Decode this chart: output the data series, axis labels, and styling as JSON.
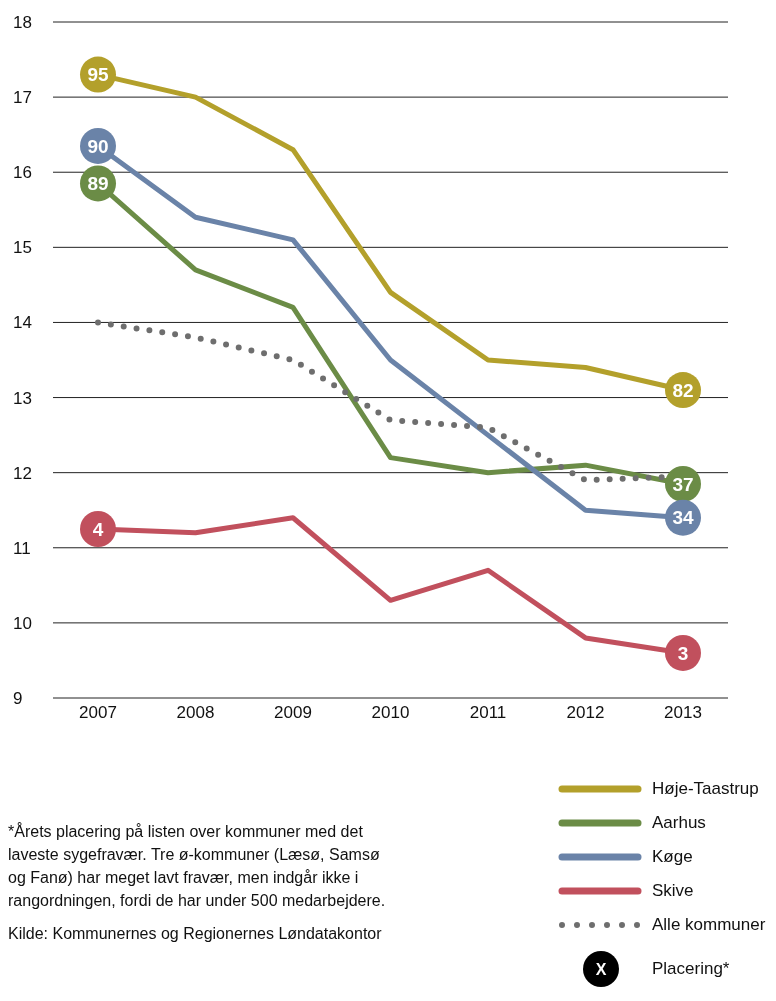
{
  "chart_data": {
    "type": "line",
    "categories": [
      "2007",
      "2008",
      "2009",
      "2010",
      "2011",
      "2012",
      "2013"
    ],
    "series": [
      {
        "name": "Høje-Taastrup",
        "color": "#b3a02b",
        "values": [
          17.3,
          17.0,
          16.3,
          14.4,
          13.5,
          13.4,
          13.1
        ]
      },
      {
        "name": "Aarhus",
        "color": "#6b8c46",
        "values": [
          15.85,
          14.7,
          14.2,
          12.2,
          12.0,
          12.1,
          11.85
        ]
      },
      {
        "name": "Køge",
        "color": "#6a83a8",
        "values": [
          16.35,
          15.4,
          15.1,
          13.5,
          12.5,
          11.5,
          11.4
        ]
      },
      {
        "name": "Skive",
        "color": "#c1505d",
        "values": [
          11.25,
          11.2,
          11.4,
          10.3,
          10.7,
          9.8,
          9.6
        ]
      },
      {
        "name": "Alle kommuner",
        "color": "#6e6e6e",
        "line_style": "dotted",
        "values": [
          14.0,
          13.8,
          13.5,
          12.7,
          12.6,
          11.9,
          11.95
        ]
      }
    ],
    "ylim": [
      9,
      18
    ],
    "yticks": [
      9,
      10,
      11,
      12,
      13,
      14,
      15,
      16,
      17,
      18
    ],
    "grid": "y",
    "legend": "bottom right",
    "marker": "none",
    "annotations": [
      {
        "text": "95",
        "x": "2007",
        "y": 17.3
      },
      {
        "text": "90",
        "x": "2007",
        "y": 16.35
      },
      {
        "text": "89",
        "x": "2007",
        "y": 15.85
      },
      {
        "text": "4",
        "x": "2007",
        "y": 11.25
      },
      {
        "text": "82",
        "x": "2013",
        "y": 13.1
      },
      {
        "text": "37",
        "x": "2013",
        "y": 11.85
      },
      {
        "text": "34",
        "x": "2013",
        "y": 11.4
      },
      {
        "text": "3",
        "x": "2013",
        "y": 9.6
      },
      "*Årets placering på listen over kommuner med det laveste sygefravær. Tre ø-kommuner (Læsø, Samsø og Fanø) har meget lavt fravær, men indgår ikke i rangordningen, fordi de har under 500 medarbejdere.",
      "Kilde: Kommunernes og Regionernes Løndatakontor",
      "X",
      "Placering*"
    ]
  }
}
